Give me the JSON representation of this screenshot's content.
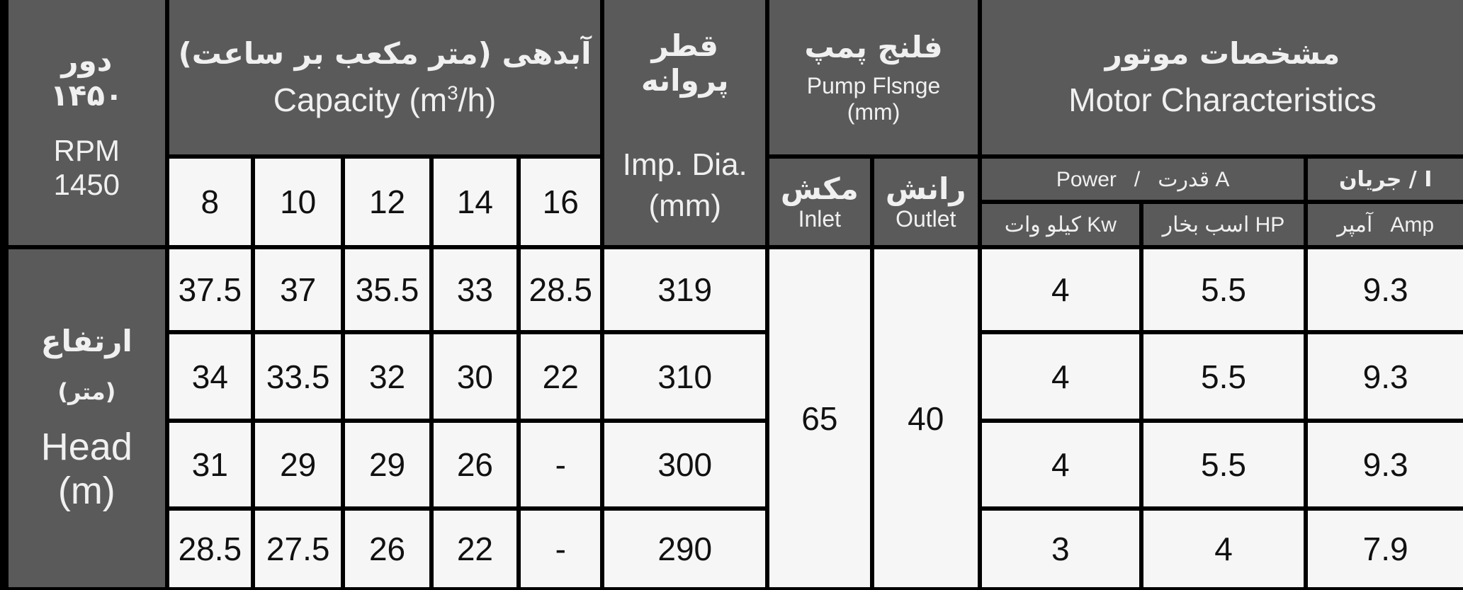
{
  "rpm_header": {
    "fa_title": "دور",
    "fa_value": "۱۴۵۰",
    "en_title": "RPM",
    "en_value": "1450"
  },
  "head_label": {
    "fa_title": "ارتفاع",
    "fa_unit": "(متر)",
    "en_title": "Head",
    "en_unit": "(m)"
  },
  "capacity": {
    "fa_title": "آبدهی (متر مکعب بر ساعت)",
    "en_title": "Capacity (m3/h)",
    "en_prefix": "Capacity (m",
    "en_sup": "3",
    "en_suffix": "/h)",
    "columns": [
      "8",
      "10",
      "12",
      "14",
      "16"
    ]
  },
  "impeller": {
    "fa_title": "قطر پروانه",
    "en_title": "Imp. Dia.",
    "unit": "(mm)"
  },
  "flange": {
    "fa_title": "فلنج پمپ",
    "en_title": "Pump Flsnge",
    "unit": "(mm)",
    "inlet_fa": "مکش",
    "inlet_en": "Inlet",
    "outlet_fa": "رانش",
    "outlet_en": "Outlet",
    "inlet_value": "65",
    "outlet_value": "40"
  },
  "motor": {
    "fa_title": "مشخصات موتور",
    "en_title": "Motor Characteristics",
    "power_label": "Power   /   قدرت A",
    "current_label": "جریان / I",
    "kw_label": "کیلو وات Kw",
    "hp_label": "اسب بخار HP",
    "amp_label": "آمپر   Amp"
  },
  "rows": [
    {
      "capacity": [
        "37.5",
        "37",
        "35.5",
        "33",
        "28.5"
      ],
      "imp": "319",
      "kw": "4",
      "hp": "5.5",
      "amp": "9.3"
    },
    {
      "capacity": [
        "34",
        "33.5",
        "32",
        "30",
        "22"
      ],
      "imp": "310",
      "kw": "4",
      "hp": "5.5",
      "amp": "9.3"
    },
    {
      "capacity": [
        "31",
        "29",
        "29",
        "26",
        "-"
      ],
      "imp": "300",
      "kw": "4",
      "hp": "5.5",
      "amp": "9.3"
    },
    {
      "capacity": [
        "28.5",
        "27.5",
        "26",
        "22",
        "-"
      ],
      "imp": "290",
      "kw": "3",
      "hp": "4",
      "amp": "7.9"
    }
  ],
  "colors": {
    "header_bg": "#5a5a5a",
    "cell_bg": "#f6f6f6",
    "border": "#000000"
  }
}
